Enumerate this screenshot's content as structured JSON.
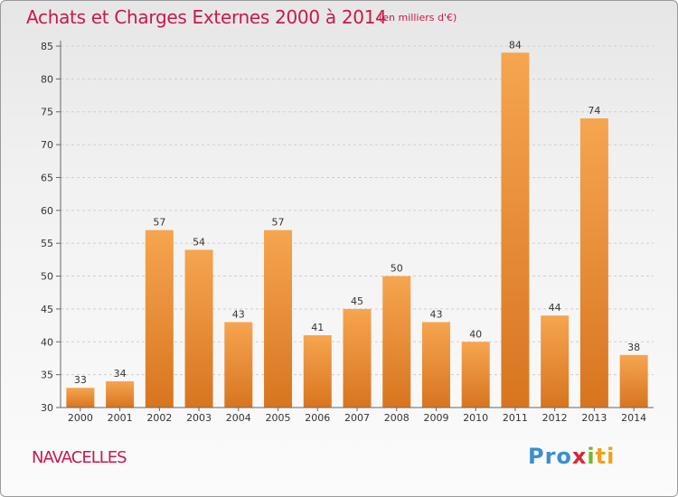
{
  "header": {
    "title": "Achats et Charges Externes 2000 à 2014",
    "unit": "(en milliers d'€)"
  },
  "footer": {
    "town": "NAVACELLES",
    "logo": [
      "Pro",
      "x",
      "i",
      "ti"
    ]
  },
  "colors": {
    "title": "#c8194a",
    "bar_light": "#f6a550",
    "bar_dark": "#d8751f",
    "grid": "#cfcfcf"
  },
  "chart_data": {
    "type": "bar",
    "categories": [
      "2000",
      "2001",
      "2002",
      "2003",
      "2004",
      "2005",
      "2006",
      "2007",
      "2008",
      "2009",
      "2010",
      "2011",
      "2012",
      "2013",
      "2014"
    ],
    "values": [
      33,
      34,
      57,
      54,
      43,
      57,
      41,
      45,
      50,
      43,
      40,
      84,
      44,
      74,
      38
    ],
    "ylim": [
      30,
      85
    ],
    "yticks": [
      30,
      35,
      40,
      45,
      50,
      55,
      60,
      65,
      70,
      75,
      80,
      85
    ],
    "grid": true,
    "data_labels": true
  }
}
